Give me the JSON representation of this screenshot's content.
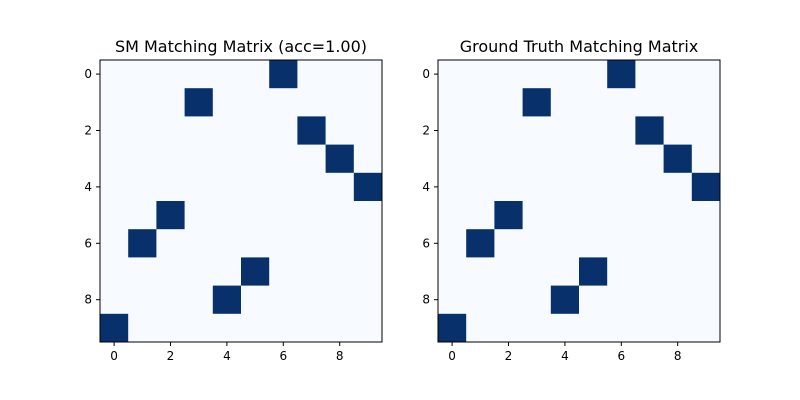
{
  "chart_data": [
    {
      "type": "heatmap",
      "title": "SM Matching Matrix (acc=1.00)",
      "rows": 10,
      "cols": 10,
      "x_ticks": [
        0,
        2,
        4,
        6,
        8
      ],
      "y_ticks": [
        0,
        2,
        4,
        6,
        8
      ],
      "colormap": {
        "low": "#f7fbff",
        "high": "#08306b"
      },
      "cells": [
        [
          0,
          6
        ],
        [
          1,
          3
        ],
        [
          2,
          7
        ],
        [
          3,
          8
        ],
        [
          4,
          9
        ],
        [
          5,
          2
        ],
        [
          6,
          1
        ],
        [
          7,
          5
        ],
        [
          8,
          4
        ],
        [
          9,
          0
        ]
      ]
    },
    {
      "type": "heatmap",
      "title": "Ground Truth Matching Matrix",
      "rows": 10,
      "cols": 10,
      "x_ticks": [
        0,
        2,
        4,
        6,
        8
      ],
      "y_ticks": [
        0,
        2,
        4,
        6,
        8
      ],
      "colormap": {
        "low": "#f7fbff",
        "high": "#08306b"
      },
      "cells": [
        [
          0,
          6
        ],
        [
          1,
          3
        ],
        [
          2,
          7
        ],
        [
          3,
          8
        ],
        [
          4,
          9
        ],
        [
          5,
          2
        ],
        [
          6,
          1
        ],
        [
          7,
          5
        ],
        [
          8,
          4
        ],
        [
          9,
          0
        ]
      ]
    }
  ]
}
